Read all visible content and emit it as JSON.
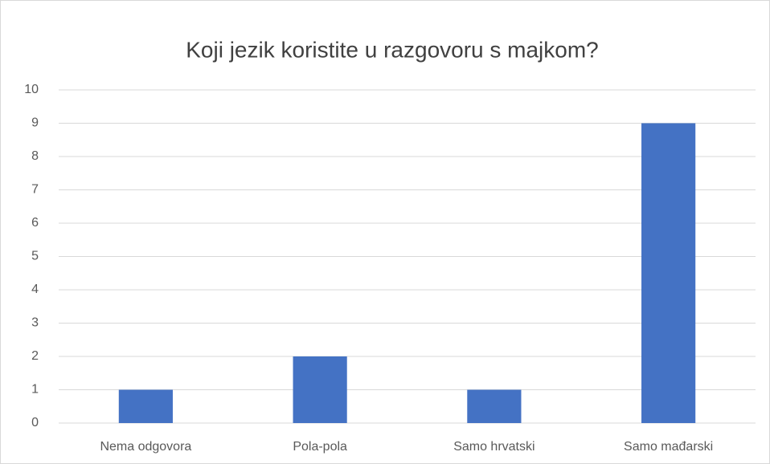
{
  "chart_data": {
    "type": "bar",
    "title": "Koji jezik koristite u razgovoru s majkom?",
    "categories": [
      "Nema odgovora",
      "Pola-pola",
      "Samo hrvatski",
      "Samo mađarski"
    ],
    "values": [
      1,
      2,
      1,
      9
    ],
    "color": "#4472c4",
    "ylim": [
      0,
      10
    ],
    "yticks": [
      0,
      1,
      2,
      3,
      4,
      5,
      6,
      7,
      8,
      9,
      10
    ],
    "grid": true
  }
}
